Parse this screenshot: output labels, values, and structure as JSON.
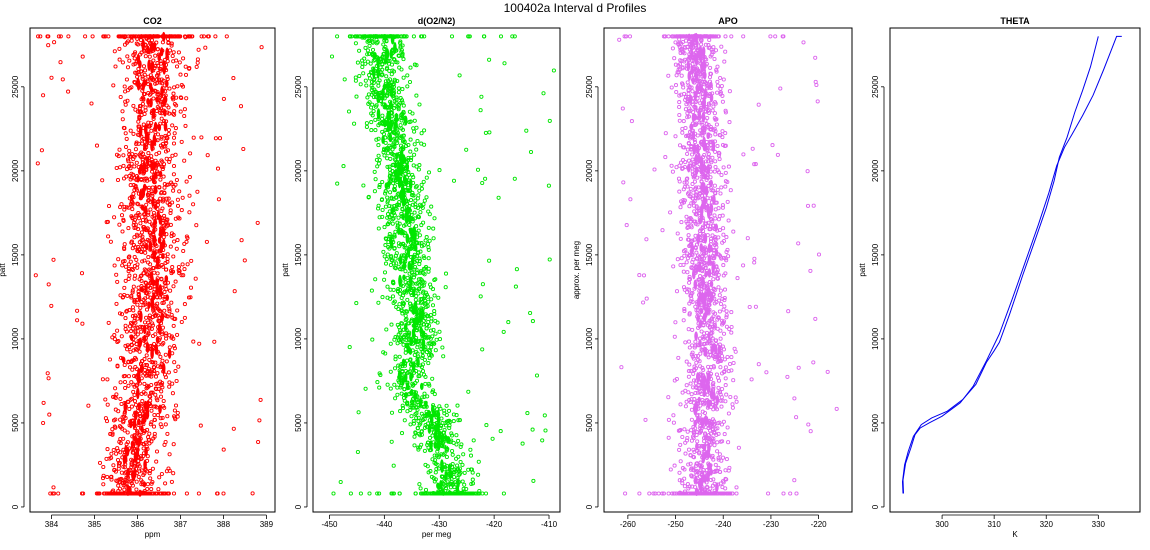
{
  "figure_title": "100402a   Interval d Profiles",
  "chart_data": [
    {
      "type": "scatter",
      "title": "CO2",
      "xlabel": "ppm",
      "ylabel": "patt",
      "xlim": [
        383.5,
        389.2
      ],
      "ylim": [
        -300,
        28500
      ],
      "xticks": [
        384,
        385,
        386,
        387,
        388,
        389
      ],
      "yticks": [
        0,
        5000,
        10000,
        15000,
        20000,
        25000
      ],
      "color": "#ff0000",
      "marker": "open-circle",
      "profile": [
        [
          0,
          385.9
        ],
        [
          3000,
          385.9
        ],
        [
          6000,
          386.1
        ],
        [
          9000,
          386.2
        ],
        [
          12000,
          386.3
        ],
        [
          15000,
          386.4
        ],
        [
          18000,
          386.3
        ],
        [
          21000,
          386.3
        ],
        [
          24000,
          386.4
        ],
        [
          27000,
          386.4
        ],
        [
          28000,
          386.4
        ]
      ],
      "spread": 0.55,
      "outlier_range": [
        383.6,
        389.0
      ],
      "y_extent": [
        800,
        28000
      ]
    },
    {
      "type": "scatter",
      "title": "d(O2/N2)",
      "xlabel": "per meg",
      "ylabel": "patt",
      "xlim": [
        -453,
        -408
      ],
      "ylim": [
        -300,
        28500
      ],
      "xticks": [
        -450,
        -440,
        -430,
        -420,
        -410
      ],
      "yticks": [
        0,
        5000,
        10000,
        15000,
        20000,
        25000
      ],
      "color": "#00e600",
      "marker": "open-circle",
      "profile": [
        [
          0,
          -428
        ],
        [
          2000,
          -428
        ],
        [
          4000,
          -430
        ],
        [
          5500,
          -432
        ],
        [
          7000,
          -436
        ],
        [
          10000,
          -434
        ],
        [
          13000,
          -435
        ],
        [
          16000,
          -436
        ],
        [
          19000,
          -437
        ],
        [
          22000,
          -438
        ],
        [
          25000,
          -440
        ],
        [
          27000,
          -440
        ],
        [
          28000,
          -440
        ]
      ],
      "spread": 3.2,
      "outlier_range": [
        -450,
        -409
      ],
      "y_extent": [
        800,
        28000
      ]
    },
    {
      "type": "scatter",
      "title": "APO",
      "xlabel": "",
      "ylabel": "approx. per meg",
      "xlim": [
        -265,
        -213
      ],
      "ylim": [
        -300,
        28500
      ],
      "xticks": [
        -260,
        -250,
        -240,
        -230,
        -220
      ],
      "yticks": [
        0,
        5000,
        10000,
        15000,
        20000,
        25000
      ],
      "color": "#dd66ee",
      "marker": "open-circle",
      "profile": [
        [
          0,
          -244
        ],
        [
          3000,
          -244
        ],
        [
          6000,
          -244
        ],
        [
          9000,
          -243
        ],
        [
          12000,
          -244
        ],
        [
          15000,
          -244
        ],
        [
          18000,
          -244
        ],
        [
          21000,
          -245
        ],
        [
          24000,
          -245
        ],
        [
          27000,
          -246
        ],
        [
          28000,
          -246
        ]
      ],
      "spread": 3.6,
      "outlier_range": [
        -262,
        -216
      ],
      "y_extent": [
        800,
        28000
      ]
    },
    {
      "type": "line",
      "title": "THETA",
      "xlabel": "K",
      "ylabel": "patt",
      "xlim": [
        290,
        338
      ],
      "ylim": [
        -300,
        28500
      ],
      "xticks": [
        300,
        310,
        320,
        330
      ],
      "yticks": [
        0,
        5000,
        10000,
        15000,
        20000,
        25000
      ],
      "color": "#0000ee",
      "series": [
        {
          "x": [
            292.5,
            292.4,
            292.8,
            293.5,
            294.5,
            296.0,
            298.0,
            301.0,
            304.0,
            306.5,
            308.5,
            310.0,
            311.0,
            313.0,
            315.5,
            318.0,
            320.0,
            321.5,
            322.5,
            324.0,
            325.5,
            327.0,
            328.5,
            329.5,
            330.0
          ],
          "y": [
            800,
            1500,
            2500,
            3300,
            4200,
            4900,
            5300,
            5700,
            6400,
            7300,
            8600,
            9300,
            9800,
            11500,
            13800,
            16000,
            17800,
            19400,
            20800,
            22000,
            23500,
            24800,
            26200,
            27400,
            28000
          ]
        },
        {
          "x": [
            292.6,
            292.5,
            293.0,
            294.0,
            294.8,
            295.8,
            297.5,
            300.0,
            303.5,
            306.0,
            308.5,
            311.0,
            313.5,
            316.0,
            318.5,
            320.5,
            322.0,
            323.5,
            325.0,
            327.0,
            329.0,
            331.0,
            332.5,
            333.5,
            334.5
          ],
          "y": [
            800,
            1600,
            2600,
            3500,
            4300,
            4700,
            5000,
            5400,
            6200,
            7200,
            8700,
            10300,
            12400,
            14600,
            16800,
            18700,
            20300,
            21400,
            22200,
            23300,
            24500,
            26000,
            27200,
            28000,
            28000
          ]
        }
      ]
    }
  ]
}
